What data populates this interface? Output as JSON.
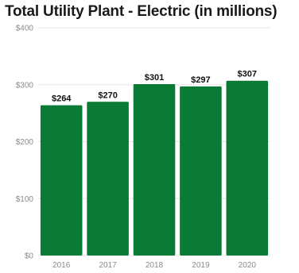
{
  "chart_data": {
    "type": "bar",
    "title": "Total Utility Plant - Electric (in millions)",
    "categories": [
      "2016",
      "2017",
      "2018",
      "2019",
      "2020"
    ],
    "values": [
      264,
      270,
      301,
      297,
      307
    ],
    "data_labels": [
      "$264",
      "$270",
      "$301",
      "$297",
      "$307"
    ],
    "y_ticks": [
      0,
      100,
      200,
      300,
      400
    ],
    "y_tick_labels": [
      "$0",
      "$100",
      "$200",
      "$300",
      "$400"
    ],
    "ylim": [
      0,
      400
    ],
    "grid": true,
    "bar_color": "#0b7a35",
    "grid_color": "#e6e6e6"
  }
}
